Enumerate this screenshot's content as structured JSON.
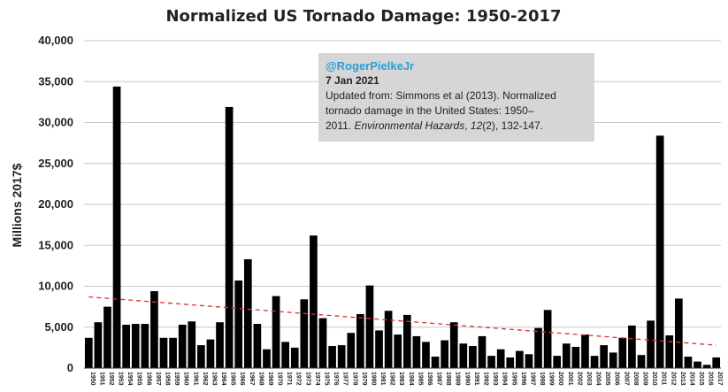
{
  "chart_data": {
    "type": "bar",
    "title": "Normalized US Tornado Damage: 1950-2017",
    "ylabel": "Millions 2017$",
    "xlabel": "",
    "ylim": [
      0,
      40000
    ],
    "yticks": [
      "0",
      "5,000",
      "10,000",
      "15,000",
      "20,000",
      "25,000",
      "30,000",
      "35,000",
      "40,000"
    ],
    "ytick_values": [
      0,
      5000,
      10000,
      15000,
      20000,
      25000,
      30000,
      35000,
      40000
    ],
    "grid": "horizontal",
    "bar_color": "#000000",
    "trend_color": "#e03030",
    "trend": {
      "start": 8700,
      "end": 2800
    },
    "categories": [
      "1950",
      "1951",
      "1952",
      "1953",
      "1954",
      "1955",
      "1956",
      "1957",
      "1958",
      "1959",
      "1960",
      "1961",
      "1962",
      "1963",
      "1964",
      "1965",
      "1966",
      "1967",
      "1968",
      "1969",
      "1970",
      "1971",
      "1972",
      "1973",
      "1974",
      "1975",
      "1976",
      "1977",
      "1978",
      "1979",
      "1980",
      "1981",
      "1982",
      "1983",
      "1984",
      "1985",
      "1986",
      "1987",
      "1988",
      "1989",
      "1990",
      "1991",
      "1992",
      "1993",
      "1994",
      "1995",
      "1996",
      "1997",
      "1998",
      "1999",
      "2000",
      "2001",
      "2002",
      "2003",
      "2004",
      "2005",
      "2006",
      "2007",
      "2008",
      "2009",
      "2010",
      "2011",
      "2012",
      "2013",
      "2014",
      "2015",
      "2016",
      "2017"
    ],
    "values": [
      3700,
      5600,
      7500,
      34400,
      5300,
      5400,
      5400,
      9400,
      3700,
      3700,
      5300,
      5700,
      2800,
      3500,
      5600,
      31900,
      10700,
      13300,
      5400,
      2300,
      8800,
      3200,
      2500,
      8400,
      16200,
      6100,
      2700,
      2800,
      4300,
      6600,
      10100,
      4600,
      7000,
      4100,
      6500,
      3900,
      3200,
      1400,
      3400,
      5600,
      3000,
      2700,
      3900,
      1500,
      2300,
      1300,
      2100,
      1700,
      4900,
      7100,
      1500,
      3000,
      2600,
      4100,
      1500,
      2800,
      1900,
      3700,
      5200,
      1600,
      5800,
      28400,
      4000,
      8500,
      1400,
      800,
      400,
      1300
    ]
  },
  "annotation": {
    "handle": "@RogerPielkeJr",
    "date": "7 Jan 2021",
    "line1": "Updated from: Simmons et al (2013). Normalized",
    "line2": "tornado damage in the United States: 1950–",
    "line3_pre": "2011. ",
    "line3_journal": "Environmental Hazards",
    "line3_mid": ", ",
    "line3_vol": "12",
    "line3_post": "(2), 132-147."
  }
}
